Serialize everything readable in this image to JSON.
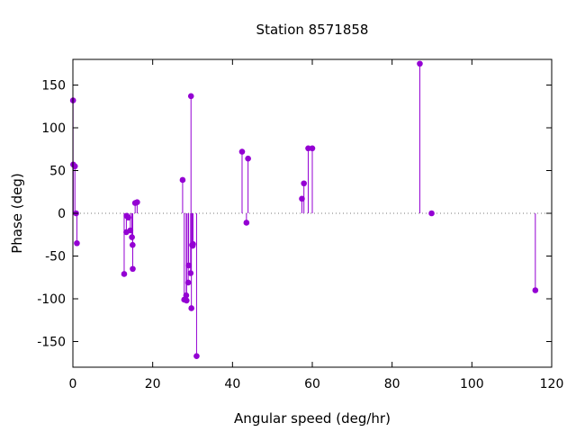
{
  "chart_data": {
    "type": "scatter",
    "style": "impulses-with-points",
    "title": "Station 8571858",
    "xlabel": "Angular speed (deg/hr)",
    "ylabel": "Phase (deg)",
    "xlim": [
      0,
      120
    ],
    "ylim": [
      -180,
      180
    ],
    "xticks": [
      0,
      20,
      40,
      60,
      80,
      100,
      120
    ],
    "yticks": [
      -150,
      -100,
      -50,
      0,
      50,
      100,
      150
    ],
    "xtick_labels": [
      "0",
      "20",
      "40",
      "60",
      "80",
      "100",
      "120"
    ],
    "ytick_labels": [
      "-150",
      "-100",
      "-50",
      "0",
      "50",
      "100",
      "150"
    ],
    "zero_line": true,
    "grid": false,
    "color": "#9400d3",
    "points": [
      {
        "x": 0.04,
        "y": 132
      },
      {
        "x": 0.08,
        "y": 57
      },
      {
        "x": 0.5,
        "y": 55
      },
      {
        "x": 0.8,
        "y": 0
      },
      {
        "x": 1.0,
        "y": -35
      },
      {
        "x": 12.85,
        "y": -71
      },
      {
        "x": 13.4,
        "y": -22
      },
      {
        "x": 13.45,
        "y": -3
      },
      {
        "x": 13.9,
        "y": -5
      },
      {
        "x": 14.4,
        "y": -20
      },
      {
        "x": 14.8,
        "y": -28
      },
      {
        "x": 14.96,
        "y": -37
      },
      {
        "x": 15.0,
        "y": -65
      },
      {
        "x": 15.6,
        "y": 12
      },
      {
        "x": 16.1,
        "y": 13
      },
      {
        "x": 27.5,
        "y": 39
      },
      {
        "x": 27.9,
        "y": -101
      },
      {
        "x": 28.4,
        "y": -96
      },
      {
        "x": 28.5,
        "y": -102
      },
      {
        "x": 28.9,
        "y": -81
      },
      {
        "x": 29.0,
        "y": -61
      },
      {
        "x": 29.5,
        "y": -70
      },
      {
        "x": 29.6,
        "y": 137
      },
      {
        "x": 29.7,
        "y": -111
      },
      {
        "x": 29.9,
        "y": -37
      },
      {
        "x": 30.0,
        "y": -38
      },
      {
        "x": 30.1,
        "y": -36
      },
      {
        "x": 31.0,
        "y": -167
      },
      {
        "x": 42.4,
        "y": 72
      },
      {
        "x": 43.5,
        "y": -11
      },
      {
        "x": 43.9,
        "y": 64
      },
      {
        "x": 57.4,
        "y": 17
      },
      {
        "x": 57.9,
        "y": 35
      },
      {
        "x": 58.98,
        "y": 76
      },
      {
        "x": 60.0,
        "y": 76
      },
      {
        "x": 86.95,
        "y": 175
      },
      {
        "x": 89.9,
        "y": 0
      },
      {
        "x": 115.9,
        "y": -90
      }
    ]
  }
}
